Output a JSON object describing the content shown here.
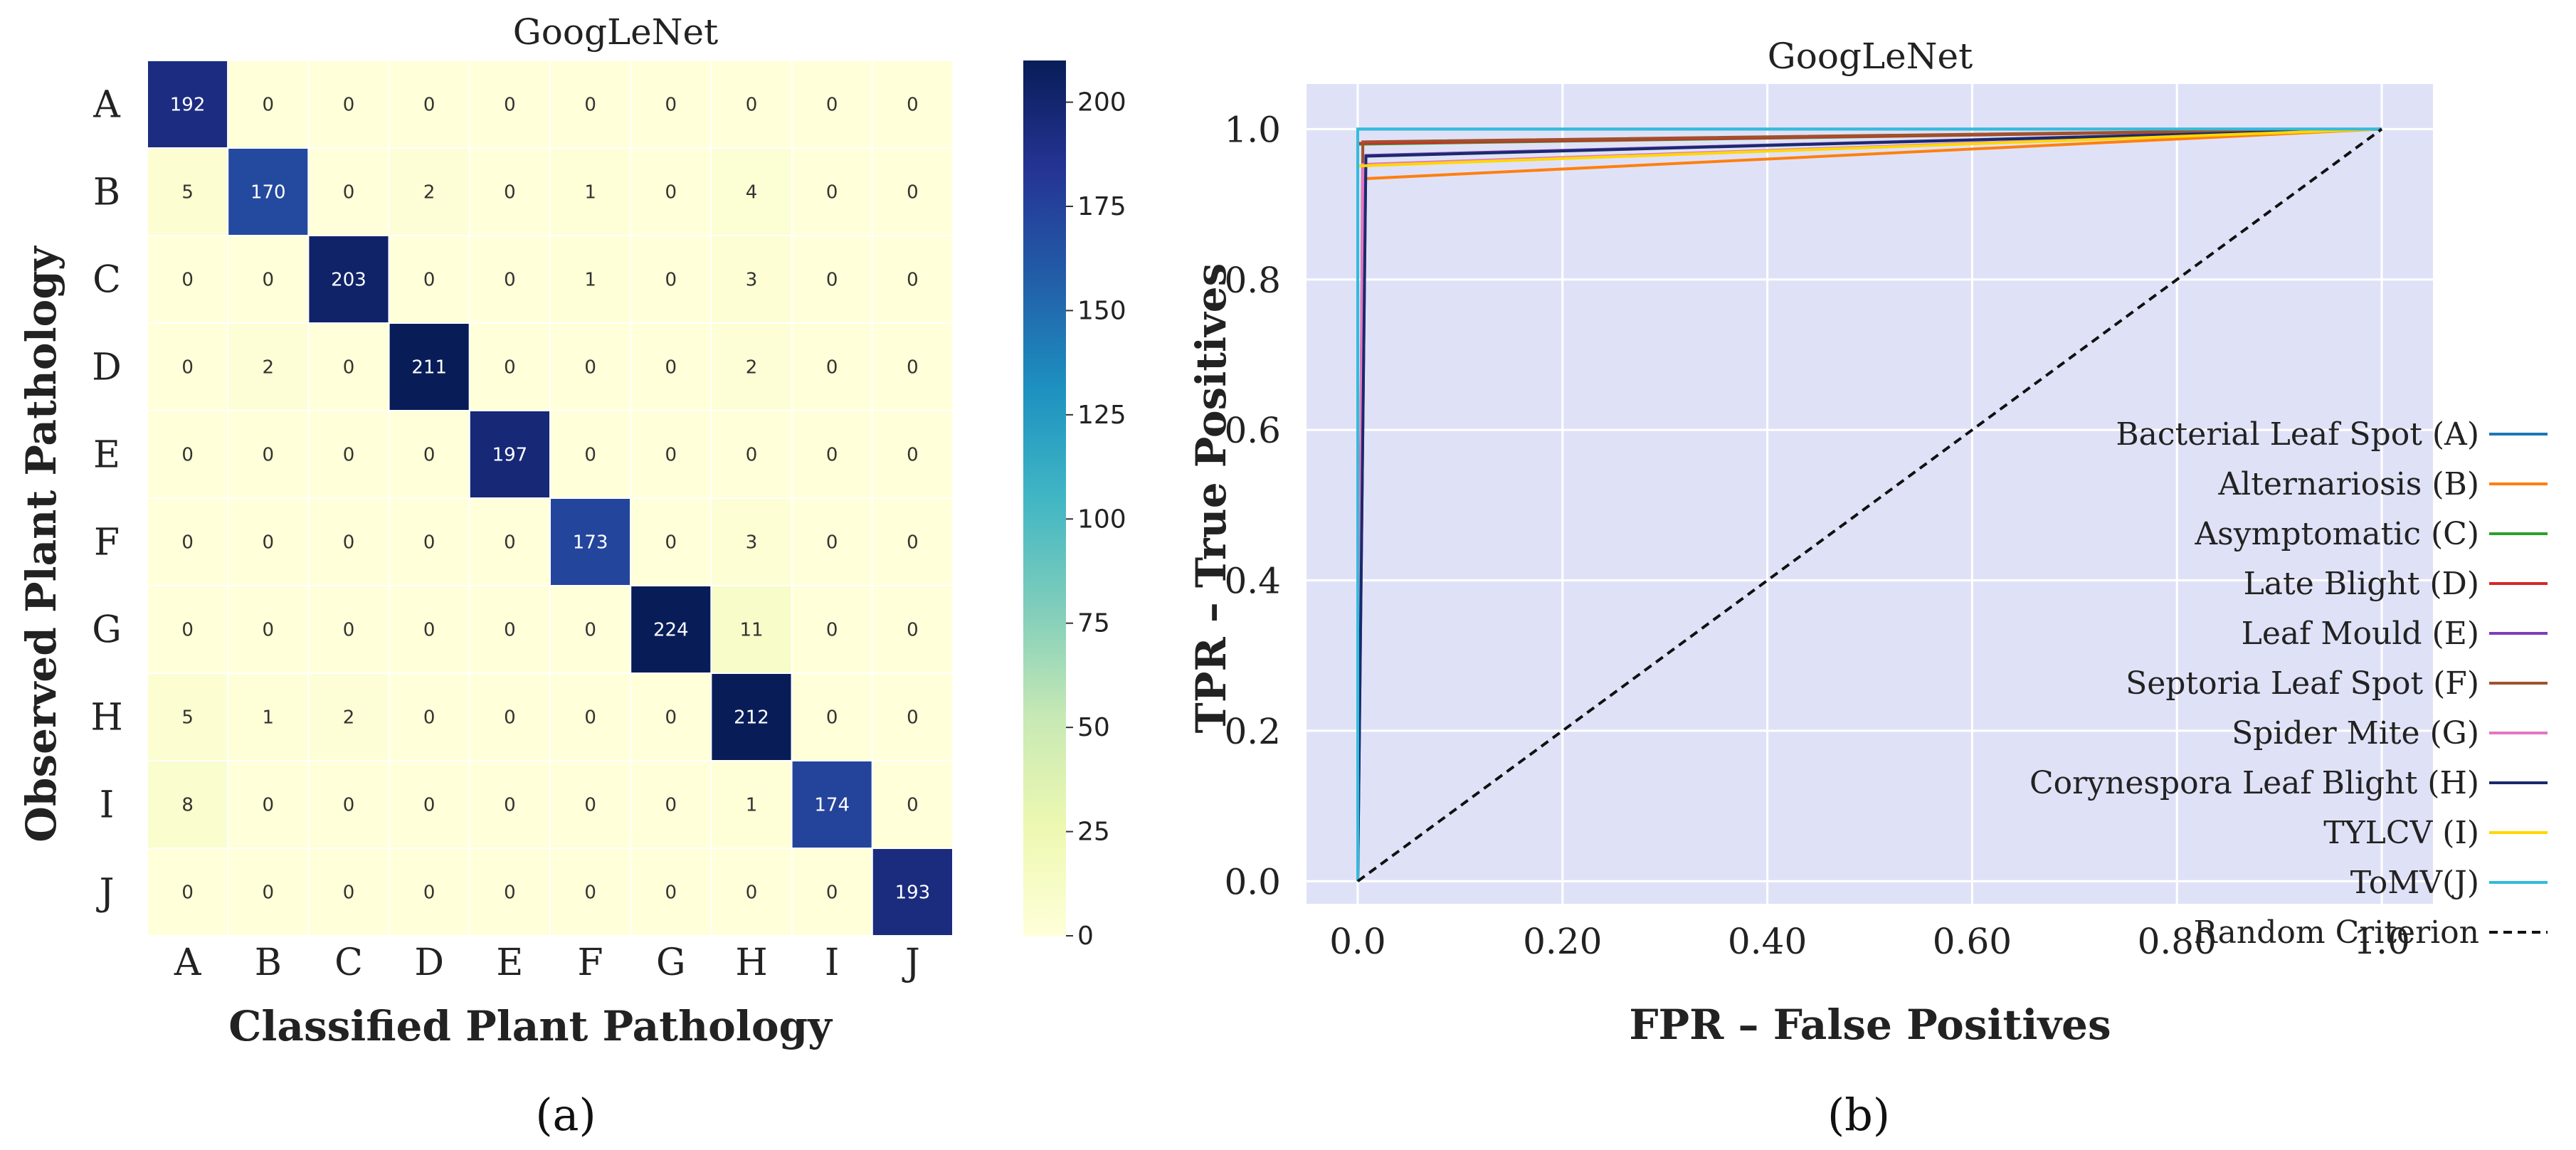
{
  "panel_labels": {
    "a": "(a)",
    "b": "(b)"
  },
  "chart_data": [
    {
      "type": "heatmap",
      "title": "GoogLeNet",
      "xlabel": "Classified Plant Pathology",
      "ylabel": "Observed Plant Pathology",
      "row_labels": [
        "A",
        "B",
        "C",
        "D",
        "E",
        "F",
        "G",
        "H",
        "I",
        "J"
      ],
      "col_labels": [
        "A",
        "B",
        "C",
        "D",
        "E",
        "F",
        "G",
        "H",
        "I",
        "J"
      ],
      "values": [
        [
          192,
          0,
          0,
          0,
          0,
          0,
          0,
          0,
          0,
          0
        ],
        [
          5,
          170,
          0,
          2,
          0,
          1,
          0,
          4,
          0,
          0
        ],
        [
          0,
          0,
          203,
          0,
          0,
          1,
          0,
          3,
          0,
          0
        ],
        [
          0,
          2,
          0,
          211,
          0,
          0,
          0,
          2,
          0,
          0
        ],
        [
          0,
          0,
          0,
          0,
          197,
          0,
          0,
          0,
          0,
          0
        ],
        [
          0,
          0,
          0,
          0,
          0,
          173,
          0,
          3,
          0,
          0
        ],
        [
          0,
          0,
          0,
          0,
          0,
          0,
          224,
          11,
          0,
          0
        ],
        [
          5,
          1,
          2,
          0,
          0,
          0,
          0,
          212,
          0,
          0
        ],
        [
          8,
          0,
          0,
          0,
          0,
          0,
          0,
          1,
          174,
          0
        ],
        [
          0,
          0,
          0,
          0,
          0,
          0,
          0,
          0,
          0,
          193
        ]
      ],
      "colorbar": {
        "ticks": [
          0,
          25,
          50,
          75,
          100,
          125,
          150,
          175,
          200
        ],
        "range": [
          0,
          210
        ],
        "colormap": "YlGnBu"
      }
    },
    {
      "type": "line",
      "title": "GoogLeNet",
      "xlabel": "FPR – False Positives",
      "ylabel": "TPR – True Positives",
      "xlim": [
        -0.05,
        1.05
      ],
      "ylim": [
        -0.03,
        1.06
      ],
      "xticks": [
        "0.0",
        "0.20",
        "0.40",
        "0.60",
        "0.80",
        "1.0"
      ],
      "yticks": [
        "0.0",
        "0.2",
        "0.4",
        "0.6",
        "0.8",
        "1.0"
      ],
      "grid": true,
      "background": "#dfe2f7",
      "legend_position": "right",
      "series": [
        {
          "name": "Bacterial Leaf Spot (A)",
          "color": "#1f77b4",
          "x": [
            0,
            0,
            1
          ],
          "y": [
            0,
            1.0,
            1
          ]
        },
        {
          "name": "Alternariosis (B)",
          "color": "#ff7f0e",
          "x": [
            0,
            0.005,
            1
          ],
          "y": [
            0,
            0.934,
            1
          ]
        },
        {
          "name": "Asymptomatic (C)",
          "color": "#2ca02c",
          "x": [
            0,
            0,
            1
          ],
          "y": [
            0,
            0.98,
            1
          ]
        },
        {
          "name": "Late Blight (D)",
          "color": "#d62728",
          "x": [
            0,
            0,
            1
          ],
          "y": [
            0,
            0.981,
            1
          ]
        },
        {
          "name": "Leaf Mould (E)",
          "color": "#7b3fb8",
          "x": [
            0,
            0.008,
            1
          ],
          "y": [
            0,
            0.965,
            1
          ]
        },
        {
          "name": "Septoria Leaf Spot (F)",
          "color": "#a0522d",
          "x": [
            0,
            0.005,
            1
          ],
          "y": [
            0,
            0.983,
            1
          ]
        },
        {
          "name": "Spider Mite (G)",
          "color": "#e377c2",
          "x": [
            0,
            0.005,
            1
          ],
          "y": [
            0,
            0.953,
            1
          ]
        },
        {
          "name": "Corynespora Leaf Blight (H)",
          "color": "#1a2a6c",
          "x": [
            0,
            0.008,
            1
          ],
          "y": [
            0,
            0.964,
            1
          ]
        },
        {
          "name": "TYLCV (I)",
          "color": "#ffd700",
          "x": [
            0,
            0,
            1
          ],
          "y": [
            0,
            0.951,
            1
          ]
        },
        {
          "name": "ToMV(J)",
          "color": "#33bbdd",
          "x": [
            0,
            0,
            1
          ],
          "y": [
            0,
            1.0,
            1
          ]
        },
        {
          "name": "Random Criterion",
          "color": "#111111",
          "dash": true,
          "x": [
            0,
            1
          ],
          "y": [
            0,
            1
          ]
        }
      ]
    }
  ]
}
